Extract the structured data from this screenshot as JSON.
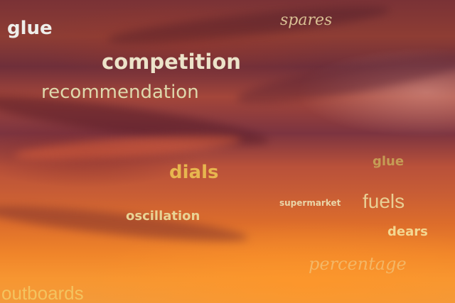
{
  "words": {
    "w1": "glue",
    "w2": "spares",
    "w3": "competition",
    "w4": "recommendation",
    "w5": "dials",
    "w6": "glue",
    "w7": "supermarket",
    "w8": "fuels",
    "w9": "oscillation",
    "w10": "dears",
    "w11": "percentage",
    "w12": "outboards"
  }
}
